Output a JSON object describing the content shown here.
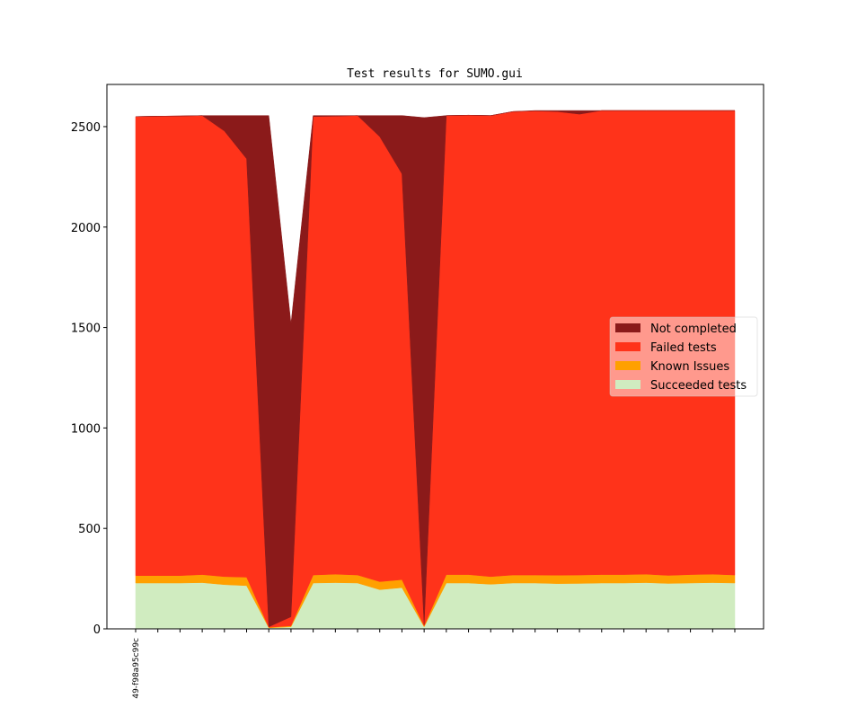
{
  "chart_data": {
    "type": "stacked_area",
    "title": "Test results for SUMO.gui",
    "categories": [
      "49-f98a95c99c",
      null,
      null,
      null,
      null,
      null,
      null,
      null,
      null,
      null,
      null,
      null,
      null,
      null,
      null,
      null,
      null,
      null,
      null,
      null,
      null,
      null,
      null,
      null,
      null,
      null,
      null,
      null
    ],
    "series": [
      {
        "name": "Succeeded tests",
        "color": "#d0ecc0",
        "values": [
          228,
          228,
          228,
          230,
          220,
          215,
          5,
          10,
          228,
          230,
          228,
          195,
          205,
          10,
          228,
          228,
          222,
          228,
          228,
          225,
          226,
          228,
          228,
          230,
          226,
          228,
          230,
          228
        ]
      },
      {
        "name": "Known Issues",
        "color": "#ffa000",
        "values": [
          37,
          37,
          37,
          40,
          40,
          42,
          3,
          5,
          40,
          42,
          40,
          40,
          40,
          5,
          42,
          42,
          38,
          40,
          40,
          42,
          42,
          42,
          42,
          42,
          40,
          42,
          42,
          40
        ]
      },
      {
        "name": "Failed tests",
        "color": "#ff331a",
        "values": [
          2285,
          2287,
          2288,
          2285,
          2218,
          2083,
          2,
          45,
          2282,
          2280,
          2287,
          2215,
          2020,
          5,
          2285,
          2287,
          2295,
          2307,
          2310,
          2308,
          2294,
          2310,
          2310,
          2308,
          2314,
          2310,
          2308,
          2312
        ]
      },
      {
        "name": "Not completed",
        "color": "#8b1a1a",
        "values": [
          0,
          0,
          0,
          0,
          77,
          215,
          2545,
          1460,
          5,
          3,
          0,
          105,
          290,
          2525,
          0,
          0,
          0,
          0,
          2,
          5,
          18,
          0,
          0,
          0,
          0,
          0,
          0,
          0
        ]
      }
    ],
    "ylim": [
      0,
      2710
    ],
    "yticks": [
      0,
      500,
      1000,
      1500,
      2000,
      2500
    ],
    "legend": "center right"
  }
}
